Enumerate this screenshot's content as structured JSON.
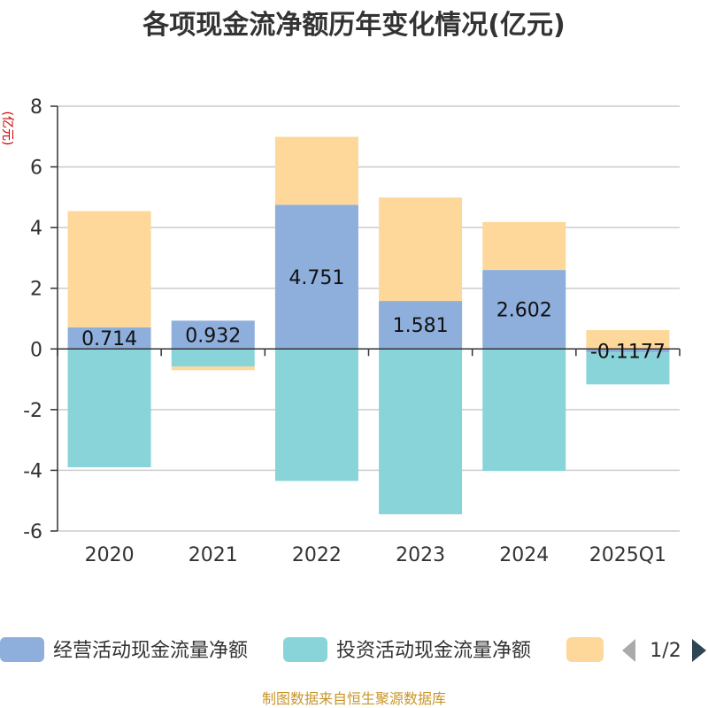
{
  "chart_data": {
    "type": "bar",
    "stacked": true,
    "title": "各项现金流净额历年变化情况(亿元)",
    "ylabel": "(亿元)",
    "xlabel": "",
    "ylim": [
      -6,
      8
    ],
    "yticks": [
      8,
      6,
      4,
      2,
      0,
      -2,
      -4,
      -6
    ],
    "categories": [
      "2020",
      "2021",
      "2022",
      "2023",
      "2024",
      "2025Q1"
    ],
    "series": [
      {
        "name": "经营活动现金流量净额",
        "color": "#8eaedc",
        "values": [
          0.714,
          0.932,
          4.751,
          1.581,
          2.602,
          -0.1177
        ],
        "labels": [
          "0.714",
          "0.932",
          "4.751",
          "1.581",
          "2.602",
          "-0.1177"
        ]
      },
      {
        "name": "投资活动现金流量净额",
        "color": "#88d4d8",
        "values": [
          -3.9,
          -0.58,
          -4.35,
          -5.45,
          -4.02,
          -1.05
        ]
      },
      {
        "name": "",
        "color": "#fdd89a",
        "values": [
          3.83,
          -0.12,
          2.24,
          3.41,
          1.58,
          0.62
        ]
      }
    ],
    "legend": {
      "position": "bottom",
      "page": "1/2"
    },
    "grid": true
  },
  "source_note": "制图数据来自恒生聚源数据库"
}
